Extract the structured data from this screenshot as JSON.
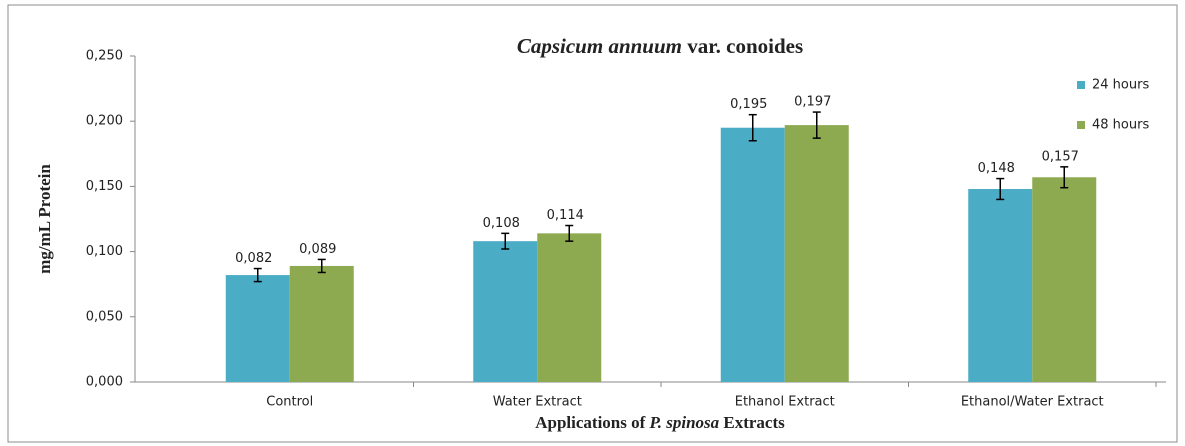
{
  "chart_data": {
    "type": "bar",
    "title": [
      "Capsicum annuum",
      " var. conoides"
    ],
    "x_label": [
      "Applications of ",
      "P. spinosa",
      " Extracts"
    ],
    "y_label": "mg/mL Protein",
    "categories": [
      "Control",
      "Water Extract",
      "Ethanol Extract",
      "Ethanol/Water Extract"
    ],
    "series": [
      {
        "name": "24 hours",
        "color": "#4bacc6",
        "values": [
          0.082,
          0.108,
          0.195,
          0.148
        ],
        "value_labels": [
          "0,082",
          "0,108",
          "0,195",
          "0,148"
        ],
        "errors": [
          0.005,
          0.006,
          0.01,
          0.008
        ]
      },
      {
        "name": "48 hours",
        "color": "#8eaa50",
        "values": [
          0.089,
          0.114,
          0.197,
          0.157
        ],
        "value_labels": [
          "0,089",
          "0,114",
          "0,197",
          "0,157"
        ],
        "errors": [
          0.005,
          0.006,
          0.01,
          0.008
        ]
      }
    ],
    "ylim": [
      0,
      0.25
    ],
    "yticks": [
      {
        "value": 0,
        "label": "0,000"
      },
      {
        "value": 0.05,
        "label": "0,050"
      },
      {
        "value": 0.1,
        "label": "0,100"
      },
      {
        "value": 0.15,
        "label": "0,150"
      },
      {
        "value": 0.2,
        "label": "0,200"
      },
      {
        "value": 0.25,
        "label": "0,250"
      }
    ],
    "legend": "top-right"
  }
}
